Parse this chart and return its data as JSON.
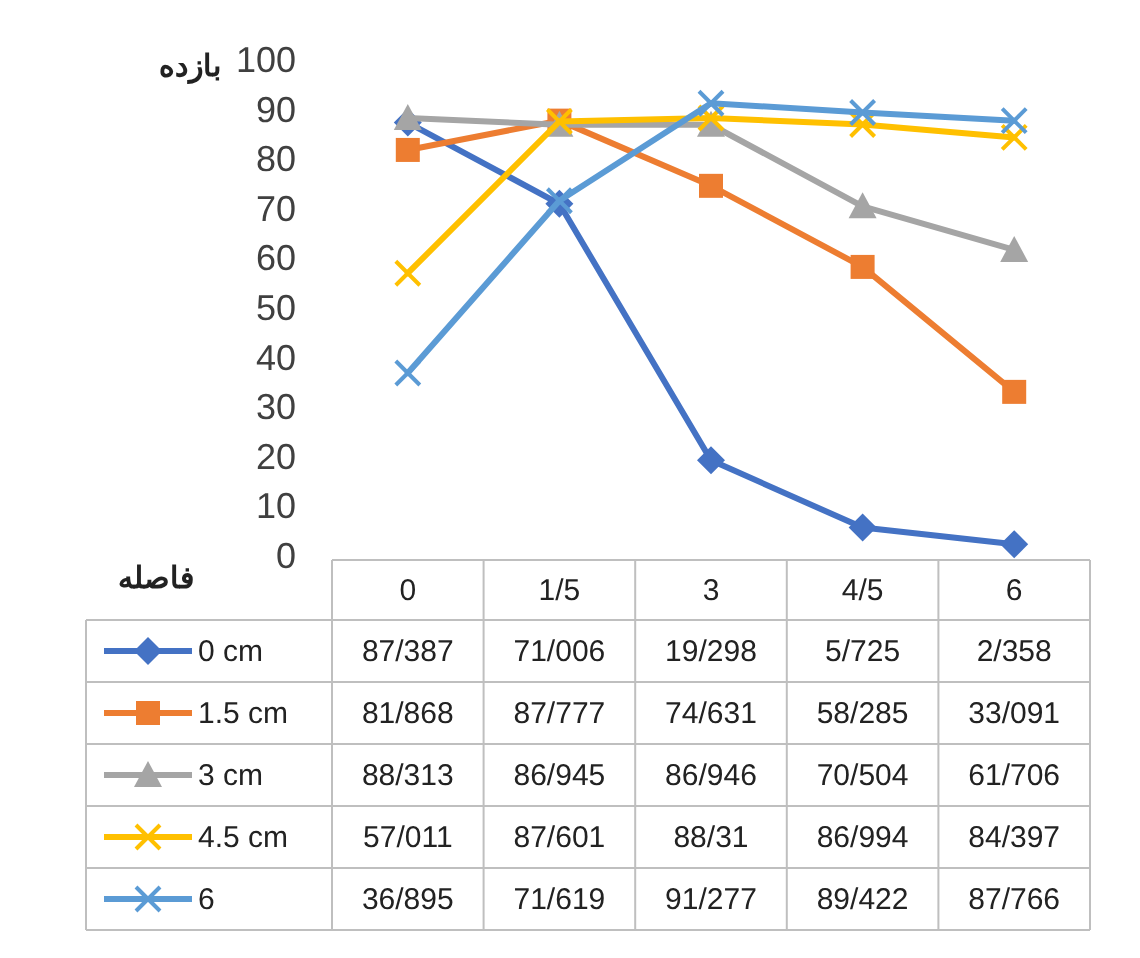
{
  "chart_data": {
    "type": "line",
    "ylabel": "بازده",
    "xlabel": "فاصله",
    "categories": [
      "0",
      "1/5",
      "3",
      "4/5",
      "6"
    ],
    "ylim": [
      0,
      100
    ],
    "yticks": [
      0,
      10,
      20,
      30,
      40,
      50,
      60,
      70,
      80,
      90,
      100
    ],
    "legend": "bottom",
    "series": [
      {
        "name": "0 cm",
        "color": "#4472c4",
        "marker": "diamond",
        "values": [
          87.387,
          71.006,
          19.298,
          5.725,
          2.358
        ],
        "value_labels": [
          "87/387",
          "71/006",
          "19/298",
          "5/725",
          "2/358"
        ]
      },
      {
        "name": "1.5 cm",
        "color": "#ed7d31",
        "marker": "square",
        "values": [
          81.868,
          87.777,
          74.631,
          58.285,
          33.091
        ],
        "value_labels": [
          "81/868",
          "87/777",
          "74/631",
          "58/285",
          "33/091"
        ]
      },
      {
        "name": "3 cm",
        "color": "#a5a5a5",
        "marker": "triangle",
        "values": [
          88.313,
          86.945,
          86.946,
          70.504,
          61.706
        ],
        "value_labels": [
          "88/313",
          "86/945",
          "86/946",
          "70/504",
          "61/706"
        ]
      },
      {
        "name": "4.5 cm",
        "color": "#ffc000",
        "marker": "cross",
        "values": [
          57.011,
          87.601,
          88.31,
          86.994,
          84.397
        ],
        "value_labels": [
          "57/011",
          "87/601",
          "88/31",
          "86/994",
          "84/397"
        ]
      },
      {
        "name": "6",
        "color": "#5b9bd5",
        "marker": "cross",
        "values": [
          36.895,
          71.619,
          91.277,
          89.422,
          87.766
        ],
        "value_labels": [
          "36/895",
          "71/619",
          "91/277",
          "89/422",
          "87/766"
        ]
      }
    ]
  }
}
